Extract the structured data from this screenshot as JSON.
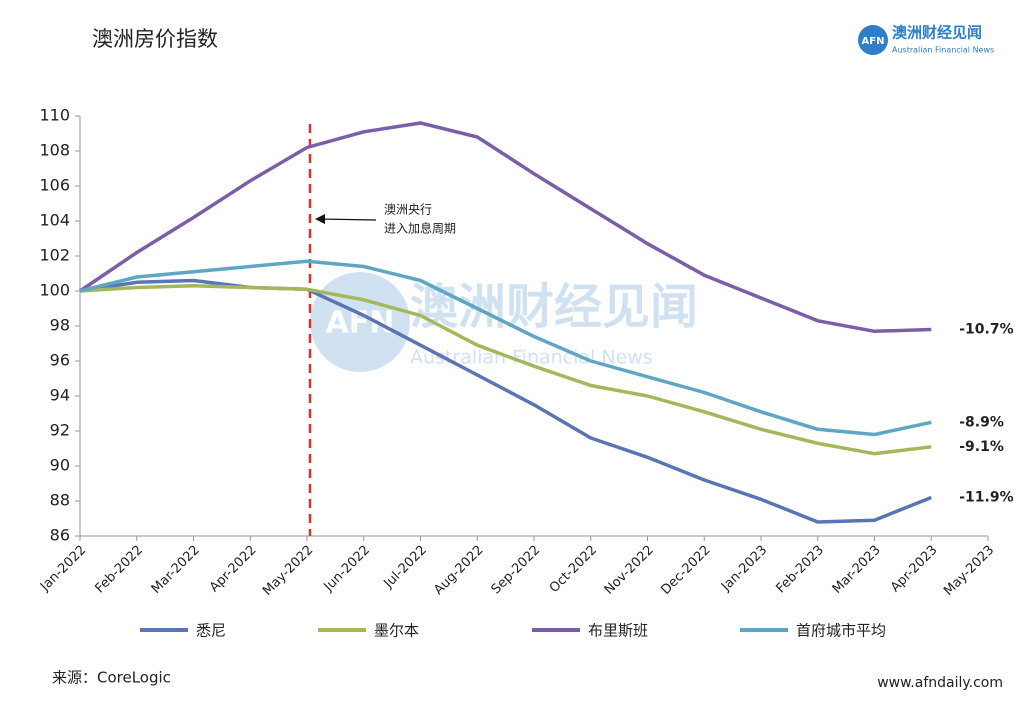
{
  "chart_data": {
    "type": "line",
    "title": "澳洲房价指数",
    "logo": {
      "mark": "AFN",
      "name": "澳洲财经见闻",
      "subname": "Australian Financial News"
    },
    "watermark": {
      "mark": "AFN",
      "name": "澳洲财经见闻",
      "subname": "Australian Financial News"
    },
    "categories": [
      "Jan-2022",
      "Feb-2022",
      "Mar-2022",
      "Apr-2022",
      "May-2022",
      "Jun-2022",
      "Jul-2022",
      "Aug-2022",
      "Sep-2022",
      "Oct-2022",
      "Nov-2022",
      "Dec-2022",
      "Jan-2023",
      "Feb-2023",
      "Mar-2023",
      "Apr-2023",
      "May-2023"
    ],
    "series": [
      {
        "name": "悉尼",
        "color": "#5b74b5",
        "end_label": "-11.9%",
        "values": [
          100,
          100.5,
          100.6,
          100.2,
          100.1,
          98.6,
          96.9,
          95.2,
          93.5,
          91.6,
          90.5,
          89.2,
          88.1,
          86.8,
          86.9,
          88.2,
          null
        ]
      },
      {
        "name": "墨尔本",
        "color": "#a3b85a",
        "end_label": "-9.1%",
        "values": [
          100,
          100.2,
          100.3,
          100.2,
          100.1,
          99.5,
          98.6,
          96.9,
          95.7,
          94.6,
          94.0,
          93.1,
          92.1,
          91.3,
          90.7,
          91.1,
          null
        ]
      },
      {
        "name": "布里斯班",
        "color": "#7a5ea8",
        "end_label": "-10.7%",
        "values": [
          100,
          102.2,
          104.2,
          106.3,
          108.2,
          109.1,
          109.6,
          108.8,
          106.7,
          104.7,
          102.7,
          100.9,
          99.6,
          98.3,
          97.7,
          97.8,
          null
        ]
      },
      {
        "name": "首府城市平均",
        "color": "#5fa6c4",
        "end_label": "-8.9%",
        "values": [
          100,
          100.8,
          101.1,
          101.4,
          101.7,
          101.4,
          100.6,
          99.0,
          97.4,
          96.0,
          95.1,
          94.2,
          93.1,
          92.1,
          91.8,
          92.5,
          null
        ]
      }
    ],
    "ylim": [
      86,
      110
    ],
    "yticks": [
      86,
      88,
      90,
      92,
      94,
      96,
      98,
      100,
      102,
      104,
      106,
      108,
      110
    ],
    "grid": false,
    "annotation": {
      "at": "May-2022",
      "lines": [
        "澳洲央行",
        "进入加息周期"
      ],
      "color": "#d9322a"
    },
    "source": "来源：CoreLogic",
    "website": "www.afndaily.com"
  }
}
